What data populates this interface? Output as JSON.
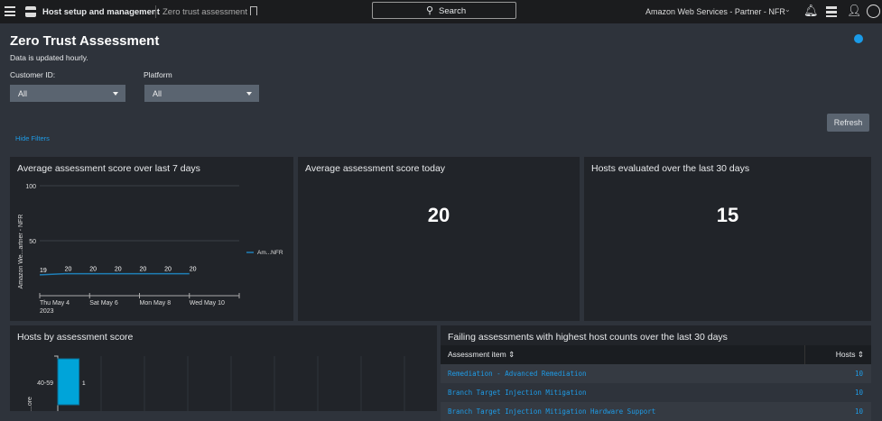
{
  "topbar": {
    "app": "Host setup and management",
    "page": "Zero trust assessment",
    "search": "Search",
    "account": "Amazon Web Services - Partner - NFR"
  },
  "header": {
    "title": "Zero Trust Assessment",
    "subtitle": "Data is updated hourly.",
    "hide_filters": "Hide Filters",
    "refresh": "Refresh"
  },
  "filters": [
    {
      "label": "Customer ID:",
      "value": "All"
    },
    {
      "label": "Platform",
      "value": "All"
    }
  ],
  "cards": {
    "avg7": {
      "title": "Average assessment score over last 7 days"
    },
    "avg_today": {
      "title": "Average assessment score today",
      "value": "20"
    },
    "hosts30": {
      "title": "Hosts evaluated over the last 30 days",
      "value": "15"
    },
    "hosts_by_score": {
      "title": "Hosts by assessment score"
    }
  },
  "chart_data": [
    {
      "type": "line",
      "title": "Average assessment score over last 7 days",
      "ylabel": "Amazon We...artner - NFR",
      "ylim": [
        0,
        100
      ],
      "yticks": [
        "100",
        "50"
      ],
      "xticks": [
        "Thu May 4\n2023",
        "Sat May 6",
        "Mon May 8",
        "Wed May 10"
      ],
      "x": [
        "2023-05-04",
        "2023-05-05",
        "2023-05-06",
        "2023-05-07",
        "2023-05-08",
        "2023-05-09",
        "2023-05-10"
      ],
      "series": [
        {
          "name": "Am...NFR",
          "values": [
            19,
            20,
            20,
            20,
            20,
            20,
            20
          ],
          "color": "#1f7fb8"
        }
      ],
      "legend": "right"
    },
    {
      "type": "bar",
      "orientation": "horizontal",
      "title": "Hosts by assessment score",
      "ylabel": "...ore",
      "categories": [
        "40-59"
      ],
      "values": [
        1
      ],
      "color": "#00a4d9"
    }
  ],
  "failing": {
    "title": "Failing assessments with highest host counts over the last 30 days",
    "columns": [
      "Assessment item",
      "Hosts"
    ],
    "rows": [
      [
        "Remediation - Advanced Remediation",
        "10"
      ],
      [
        "Branch Target Injection Mitigation",
        "10"
      ],
      [
        "Branch Target Injection Mitigation Hardware Support",
        "10"
      ]
    ]
  }
}
